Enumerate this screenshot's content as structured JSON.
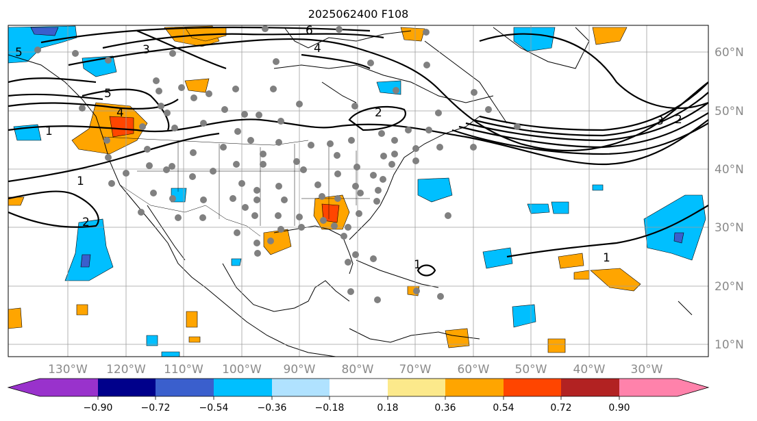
{
  "title": "2025062400 F108",
  "lon_labels": [
    "130°W",
    "120°W",
    "110°W",
    "100°W",
    "90°W",
    "80°W",
    "70°W",
    "60°W",
    "50°W",
    "40°W",
    "30°W"
  ],
  "lat_labels": [
    "60°N",
    "50°N",
    "40°N",
    "30°N",
    "20°N",
    "10°N"
  ],
  "colorbar": {
    "colors": [
      "#9932cc",
      "#00008b",
      "#3a5fcd",
      "#00bfff",
      "#b0e2ff",
      "#ffffff",
      "#ffffff",
      "#fce98b",
      "#ffa500",
      "#ff4500",
      "#b22222",
      "#ff82ab"
    ],
    "tick_labels": [
      "−0.90",
      "−0.72",
      "−0.54",
      "−0.36",
      "−0.18",
      "0.18",
      "0.36",
      "0.54",
      "0.72",
      "0.90"
    ]
  },
  "contour_labels": [
    "6",
    "5",
    "4",
    "3",
    "2",
    "1"
  ],
  "station_marker_color": "#808080"
}
